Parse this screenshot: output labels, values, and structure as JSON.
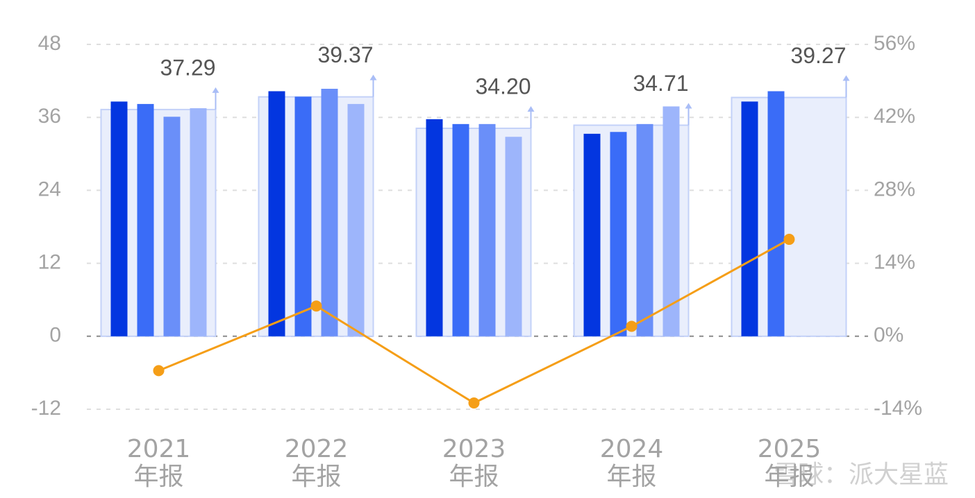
{
  "chart_data": {
    "type": "bar",
    "categories": [
      "2021\n年报",
      "2022\n年报",
      "2023\n年报",
      "2024\n年报",
      "2025\n年报"
    ],
    "series": [
      {
        "color": "#0336e0",
        "values": [
          38.6,
          40.3,
          35.7,
          33.3,
          38.6
        ]
      },
      {
        "color": "#3a6cf7",
        "values": [
          38.2,
          39.4,
          34.9,
          33.6,
          40.3
        ]
      },
      {
        "color": "#6a8ff9",
        "values": [
          36.1,
          40.7,
          34.9,
          34.9,
          null
        ]
      },
      {
        "color": "#9db5fb",
        "values": [
          37.5,
          38.2,
          32.8,
          37.8,
          null
        ]
      }
    ],
    "total": {
      "color": "#e9eefc",
      "stroke": "#c3d1f8",
      "values": [
        37.29,
        39.37,
        34.2,
        34.71,
        39.27
      ],
      "value_labels": [
        "37.29",
        "39.37",
        "34.20",
        "34.71",
        "39.27"
      ]
    },
    "growth": {
      "axis": "y2",
      "color": "#f59e17",
      "values": [
        -6.6,
        5.8,
        -12.8,
        1.9,
        18.6
      ]
    },
    "ylim": [
      -12,
      48
    ],
    "yticks": [
      -12,
      0,
      12,
      24,
      36,
      48
    ],
    "y2lim": [
      -14,
      56
    ],
    "y2ticks": [
      {
        "value": -14,
        "label": "-14%"
      },
      {
        "value": 0,
        "label": "0%"
      },
      {
        "value": 14,
        "label": "14%"
      },
      {
        "value": 28,
        "label": "28%"
      },
      {
        "value": 42,
        "label": "42%"
      },
      {
        "value": 56,
        "label": "56%"
      }
    ],
    "grid": true
  },
  "watermark": "雪球：派大星蓝"
}
